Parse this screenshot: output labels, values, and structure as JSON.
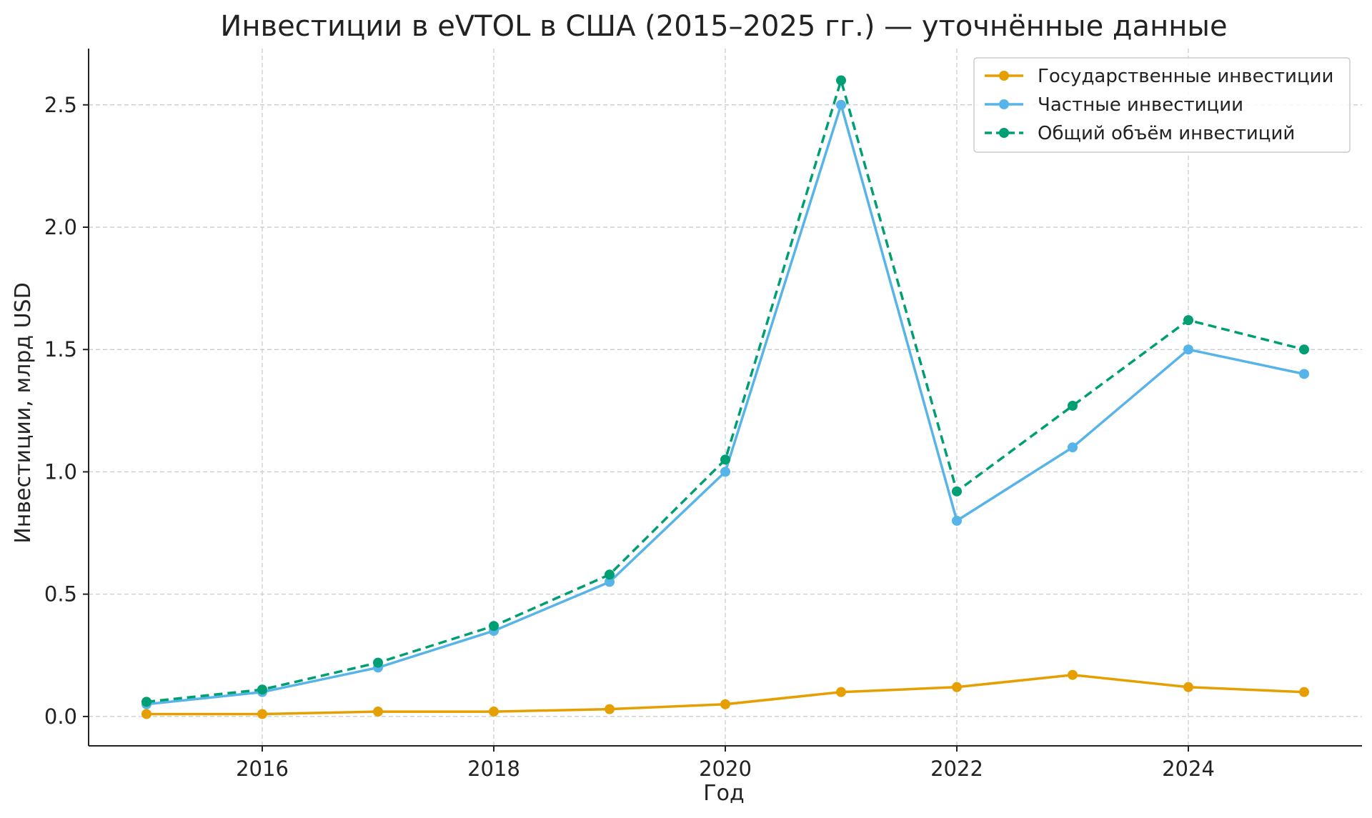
{
  "chart_data": {
    "type": "line",
    "title": "Инвестиции в eVTOL в США (2015–2025 гг.) — уточнённые данные",
    "xlabel": "Год",
    "ylabel": "Инвестиции, млрд USD",
    "x": [
      2015,
      2016,
      2017,
      2018,
      2019,
      2020,
      2021,
      2022,
      2023,
      2024,
      2025
    ],
    "xlim": [
      2014.5,
      2025.5
    ],
    "ylim": [
      -0.12,
      2.73
    ],
    "xticks": [
      2016,
      2018,
      2020,
      2022,
      2024
    ],
    "yticks": [
      0.0,
      0.5,
      1.0,
      1.5,
      2.0,
      2.5
    ],
    "xtick_labels": [
      "2016",
      "2018",
      "2020",
      "2022",
      "2024"
    ],
    "ytick_labels": [
      "0.0",
      "0.5",
      "1.0",
      "1.5",
      "2.0",
      "2.5"
    ],
    "grid": true,
    "legend_position": "top-right",
    "series": [
      {
        "name": "Государственные инвестиции",
        "color": "#E69F00",
        "style": "solid",
        "values": [
          0.01,
          0.01,
          0.02,
          0.02,
          0.03,
          0.05,
          0.1,
          0.12,
          0.17,
          0.12,
          0.1
        ]
      },
      {
        "name": "Частные инвестиции",
        "color": "#56B4E9",
        "style": "solid",
        "values": [
          0.05,
          0.1,
          0.2,
          0.35,
          0.55,
          1.0,
          2.5,
          0.8,
          1.1,
          1.5,
          1.4
        ]
      },
      {
        "name": "Общий объём инвестиций",
        "color": "#009E73",
        "style": "dashed",
        "values": [
          0.06,
          0.11,
          0.22,
          0.37,
          0.58,
          1.05,
          2.6,
          0.92,
          1.27,
          1.62,
          1.5
        ]
      }
    ]
  }
}
